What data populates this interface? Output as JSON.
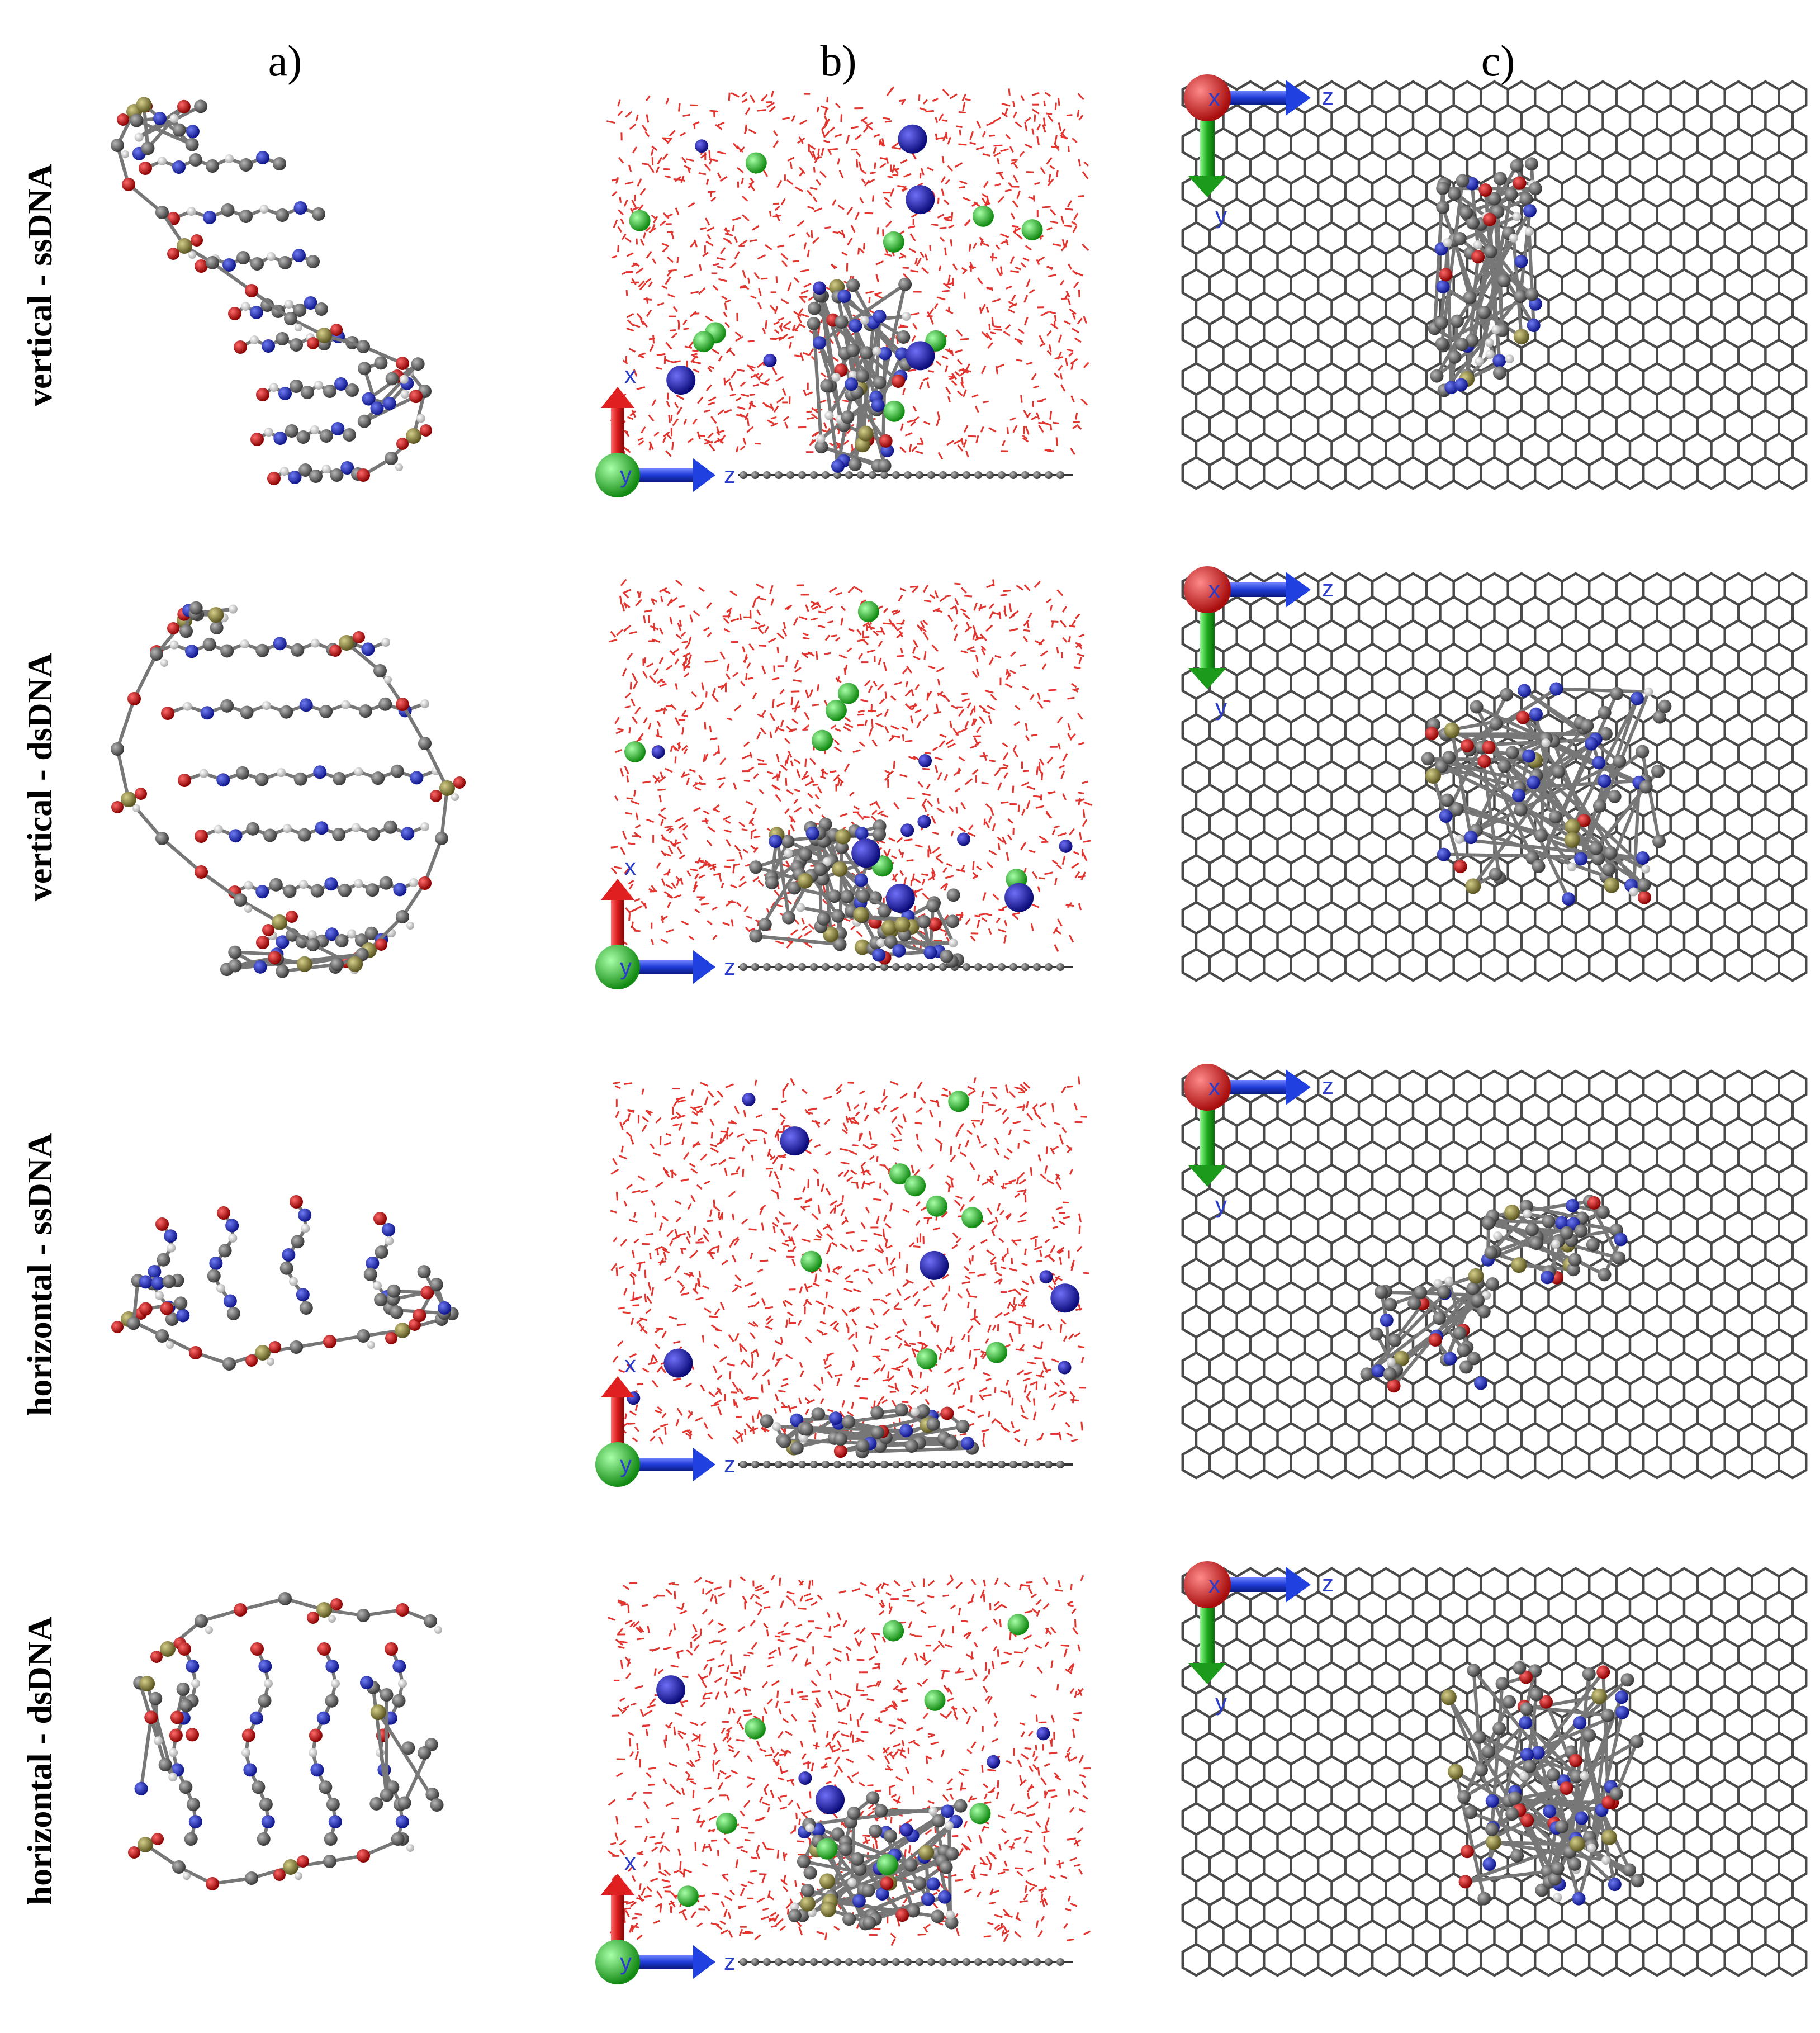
{
  "columns": [
    {
      "id": "a",
      "label": "a)"
    },
    {
      "id": "b",
      "label": "b)"
    },
    {
      "id": "c",
      "label": "c)"
    }
  ],
  "rows": [
    {
      "id": "v-ss",
      "label": "vertical - ssDNA"
    },
    {
      "id": "v-ds",
      "label": "vertical - dsDNA"
    },
    {
      "id": "h-ss",
      "label": "horizontal - ssDNA"
    },
    {
      "id": "h-ds",
      "label": "horizontal - dsDNA"
    }
  ],
  "axes": {
    "side_view": {
      "up": "x",
      "right": "z",
      "out": "y"
    },
    "top_view": {
      "out": "x",
      "right": "z",
      "down": "y"
    }
  },
  "colors": {
    "background": "#ffffff",
    "water": "#e2352f",
    "carbon": "#5a5a5a",
    "nitrogen": "#2233bb",
    "oxygen": "#cc1111",
    "phosphorus": "#8a8440",
    "hydrogen": "#e8e8e8",
    "sodium": "#1d1db5",
    "chloride": "#22c122",
    "axis_x": "#d81b1b",
    "axis_y": "#1faa1f",
    "axis_z": "#1f3bd6",
    "graphene": "#4a4a4a"
  }
}
